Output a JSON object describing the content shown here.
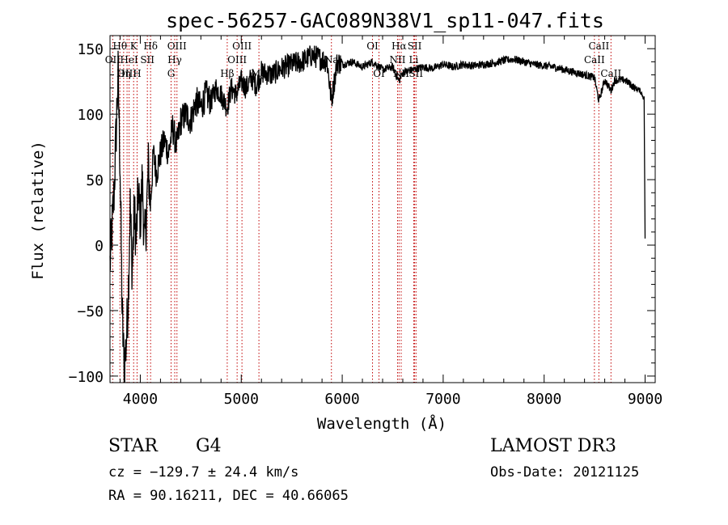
{
  "chart_data": {
    "type": "line",
    "title": "spec-56257-GAC089N38V1_sp11-047.fits",
    "xlabel": "Wavelength (Å)",
    "ylabel": "Flux (relative)",
    "xlim": [
      3700,
      9100
    ],
    "ylim": [
      -105,
      160
    ],
    "xticks": [
      4000,
      5000,
      6000,
      7000,
      8000,
      9000
    ],
    "yticks": [
      -100,
      -50,
      0,
      50,
      100,
      150
    ],
    "xtick_labels": [
      "4000",
      "5000",
      "6000",
      "7000",
      "8000",
      "9000"
    ],
    "ytick_labels": [
      "−100",
      "−50",
      "0",
      "50",
      "100",
      "150"
    ],
    "series": [
      {
        "name": "flux",
        "x": [
          3700,
          3740,
          3780,
          3800,
          3820,
          3840,
          3860,
          3880,
          3900,
          3920,
          3940,
          3960,
          3980,
          4000,
          4020,
          4040,
          4060,
          4080,
          4100,
          4130,
          4160,
          4200,
          4240,
          4280,
          4320,
          4360,
          4400,
          4450,
          4500,
          4550,
          4600,
          4650,
          4700,
          4750,
          4800,
          4860,
          4900,
          4950,
          5000,
          5050,
          5100,
          5150,
          5200,
          5300,
          5400,
          5500,
          5600,
          5700,
          5800,
          5850,
          5893,
          5950,
          6000,
          6100,
          6200,
          6300,
          6400,
          6500,
          6563,
          6600,
          6700,
          6800,
          6900,
          7000,
          7100,
          7200,
          7300,
          7400,
          7500,
          7600,
          7700,
          7800,
          7900,
          8000,
          8100,
          8200,
          8300,
          8400,
          8498,
          8542,
          8600,
          8662,
          8700,
          8800,
          8900,
          8950,
          8990,
          9000
        ],
        "y": [
          -15,
          40,
          130,
          60,
          -50,
          -95,
          -75,
          -40,
          30,
          -20,
          25,
          5,
          40,
          20,
          50,
          0,
          20,
          60,
          30,
          70,
          55,
          70,
          80,
          70,
          90,
          75,
          95,
          100,
          95,
          110,
          105,
          115,
          110,
          120,
          115,
          105,
          120,
          115,
          125,
          120,
          128,
          122,
          132,
          130,
          135,
          138,
          140,
          145,
          142,
          140,
          110,
          140,
          138,
          140,
          136,
          140,
          134,
          136,
          125,
          132,
          134,
          136,
          135,
          138,
          136,
          138,
          137,
          138,
          139,
          141,
          142,
          140,
          138,
          137,
          136,
          134,
          132,
          130,
          128,
          110,
          126,
          118,
          126,
          126,
          120,
          118,
          112,
          5
        ]
      }
    ],
    "spectral_lines": [
      {
        "label": "Hθ",
        "wl": 3798,
        "row": 0
      },
      {
        "label": "OII",
        "wl": 3727,
        "row": 1
      },
      {
        "label": "OIII",
        "wl": 3869,
        "row": 2
      },
      {
        "label": "K",
        "wl": 3934,
        "row": 0
      },
      {
        "label": "HeI",
        "wl": 3889,
        "row": 1
      },
      {
        "label": "Hη",
        "wl": 3835,
        "row": 2
      },
      {
        "label": "Hδ",
        "wl": 4102,
        "row": 0
      },
      {
        "label": "SII",
        "wl": 4070,
        "row": 1
      },
      {
        "label": "H",
        "wl": 3968,
        "row": 2
      },
      {
        "label": "OIII",
        "wl": 4363,
        "row": 0
      },
      {
        "label": "Hγ",
        "wl": 4341,
        "row": 1
      },
      {
        "label": "G",
        "wl": 4305,
        "row": 2
      },
      {
        "label": "OIII",
        "wl": 5007,
        "row": 0
      },
      {
        "label": "OIII",
        "wl": 4959,
        "row": 1
      },
      {
        "label": "Hβ",
        "wl": 4861,
        "row": 2
      },
      {
        "label": "Mg",
        "wl": 5175,
        "row": 2
      },
      {
        "label": "Na",
        "wl": 5893,
        "row": 1
      },
      {
        "label": "OI",
        "wl": 6300,
        "row": 0
      },
      {
        "label": "OI",
        "wl": 6364,
        "row": 2
      },
      {
        "label": "Hα",
        "wl": 6563,
        "row": 0
      },
      {
        "label": "SII",
        "wl": 6717,
        "row": 0
      },
      {
        "label": "NII",
        "wl": 6548,
        "row": 1
      },
      {
        "label": "Li",
        "wl": 6708,
        "row": 1
      },
      {
        "label": "NII",
        "wl": 6584,
        "row": 2
      },
      {
        "label": "SII",
        "wl": 6731,
        "row": 2
      },
      {
        "label": "CaII",
        "wl": 8542,
        "row": 0
      },
      {
        "label": "CaII",
        "wl": 8498,
        "row": 1
      },
      {
        "label": "CaII",
        "wl": 8662,
        "row": 2
      }
    ]
  },
  "info": {
    "object_class": "STAR",
    "subclass": "G4",
    "survey": "LAMOST DR3",
    "velocity": "cz = −129.7 ± 24.4 km/s",
    "obs_date": "Obs-Date: 20121125",
    "coords": "RA =  90.16211, DEC =  40.66065"
  }
}
